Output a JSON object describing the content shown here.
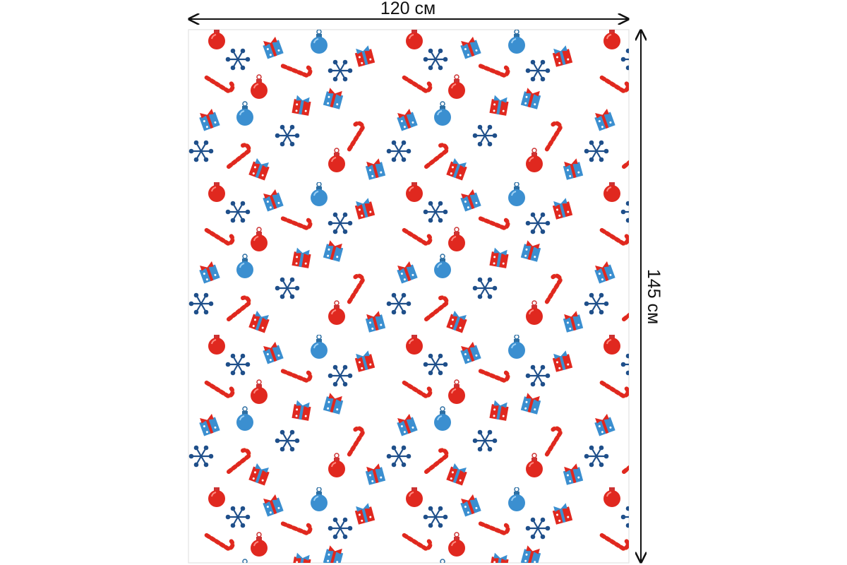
{
  "dimensions": {
    "width_label": "120 см",
    "height_label": "145 см"
  }
}
